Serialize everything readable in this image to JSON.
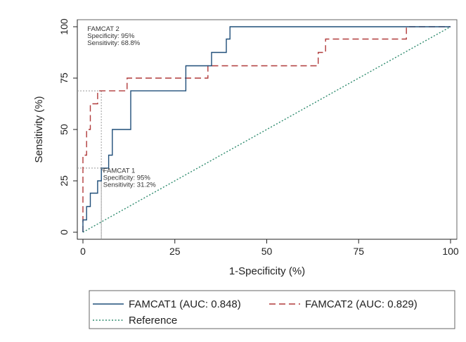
{
  "chart_data": {
    "type": "line",
    "title": "",
    "xlabel": "1-Specificity (%)",
    "ylabel": "Sensitivity (%)",
    "xlim": [
      0,
      100
    ],
    "ylim": [
      0,
      100
    ],
    "xticks": [
      0,
      25,
      50,
      75,
      100
    ],
    "yticks": [
      0,
      25,
      50,
      75,
      100
    ],
    "grid": false,
    "legend_position": "bottom",
    "series": [
      {
        "name": "FAMCAT1 (AUC: 0.848)",
        "color": "#1f4e79",
        "style": "solid",
        "x": [
          0,
          0,
          1,
          1,
          2,
          2,
          4,
          4,
          5,
          5,
          7,
          7,
          8,
          8,
          13,
          13,
          28,
          28,
          35,
          35,
          39,
          39,
          40,
          40,
          100
        ],
        "y": [
          0,
          6,
          6,
          12.5,
          12.5,
          19,
          19,
          25,
          25,
          31.2,
          31.2,
          37.5,
          37.5,
          50,
          50,
          68.8,
          68.8,
          81,
          81,
          87.5,
          87.5,
          94,
          94,
          100,
          100
        ]
      },
      {
        "name": "FAMCAT2 (AUC: 0.829)",
        "color": "#b03a3a",
        "style": "dashed",
        "x": [
          0,
          0,
          1,
          1,
          2,
          2,
          4,
          4,
          5,
          5,
          12,
          12,
          34,
          34,
          64,
          64,
          66,
          66,
          88,
          88,
          100
        ],
        "y": [
          0,
          37.5,
          37.5,
          50,
          50,
          62.5,
          62.5,
          68.8,
          68.8,
          68.8,
          68.8,
          75,
          75,
          81,
          81,
          87.5,
          87.5,
          94,
          94,
          100,
          100
        ]
      },
      {
        "name": "Reference",
        "color": "#2e8b6e",
        "style": "dotted",
        "x": [
          0,
          100
        ],
        "y": [
          0,
          100
        ]
      }
    ],
    "annotations": [
      {
        "lines": [
          "FAMCAT 2",
          "Specificity: 95%",
          "Sensitivity: 68.8%"
        ],
        "point": [
          5,
          68.8
        ]
      },
      {
        "lines": [
          "FAMCAT 1",
          "Specificity: 95%",
          "Sensitivity: 31.2%"
        ],
        "point": [
          5,
          31.2
        ]
      }
    ]
  }
}
